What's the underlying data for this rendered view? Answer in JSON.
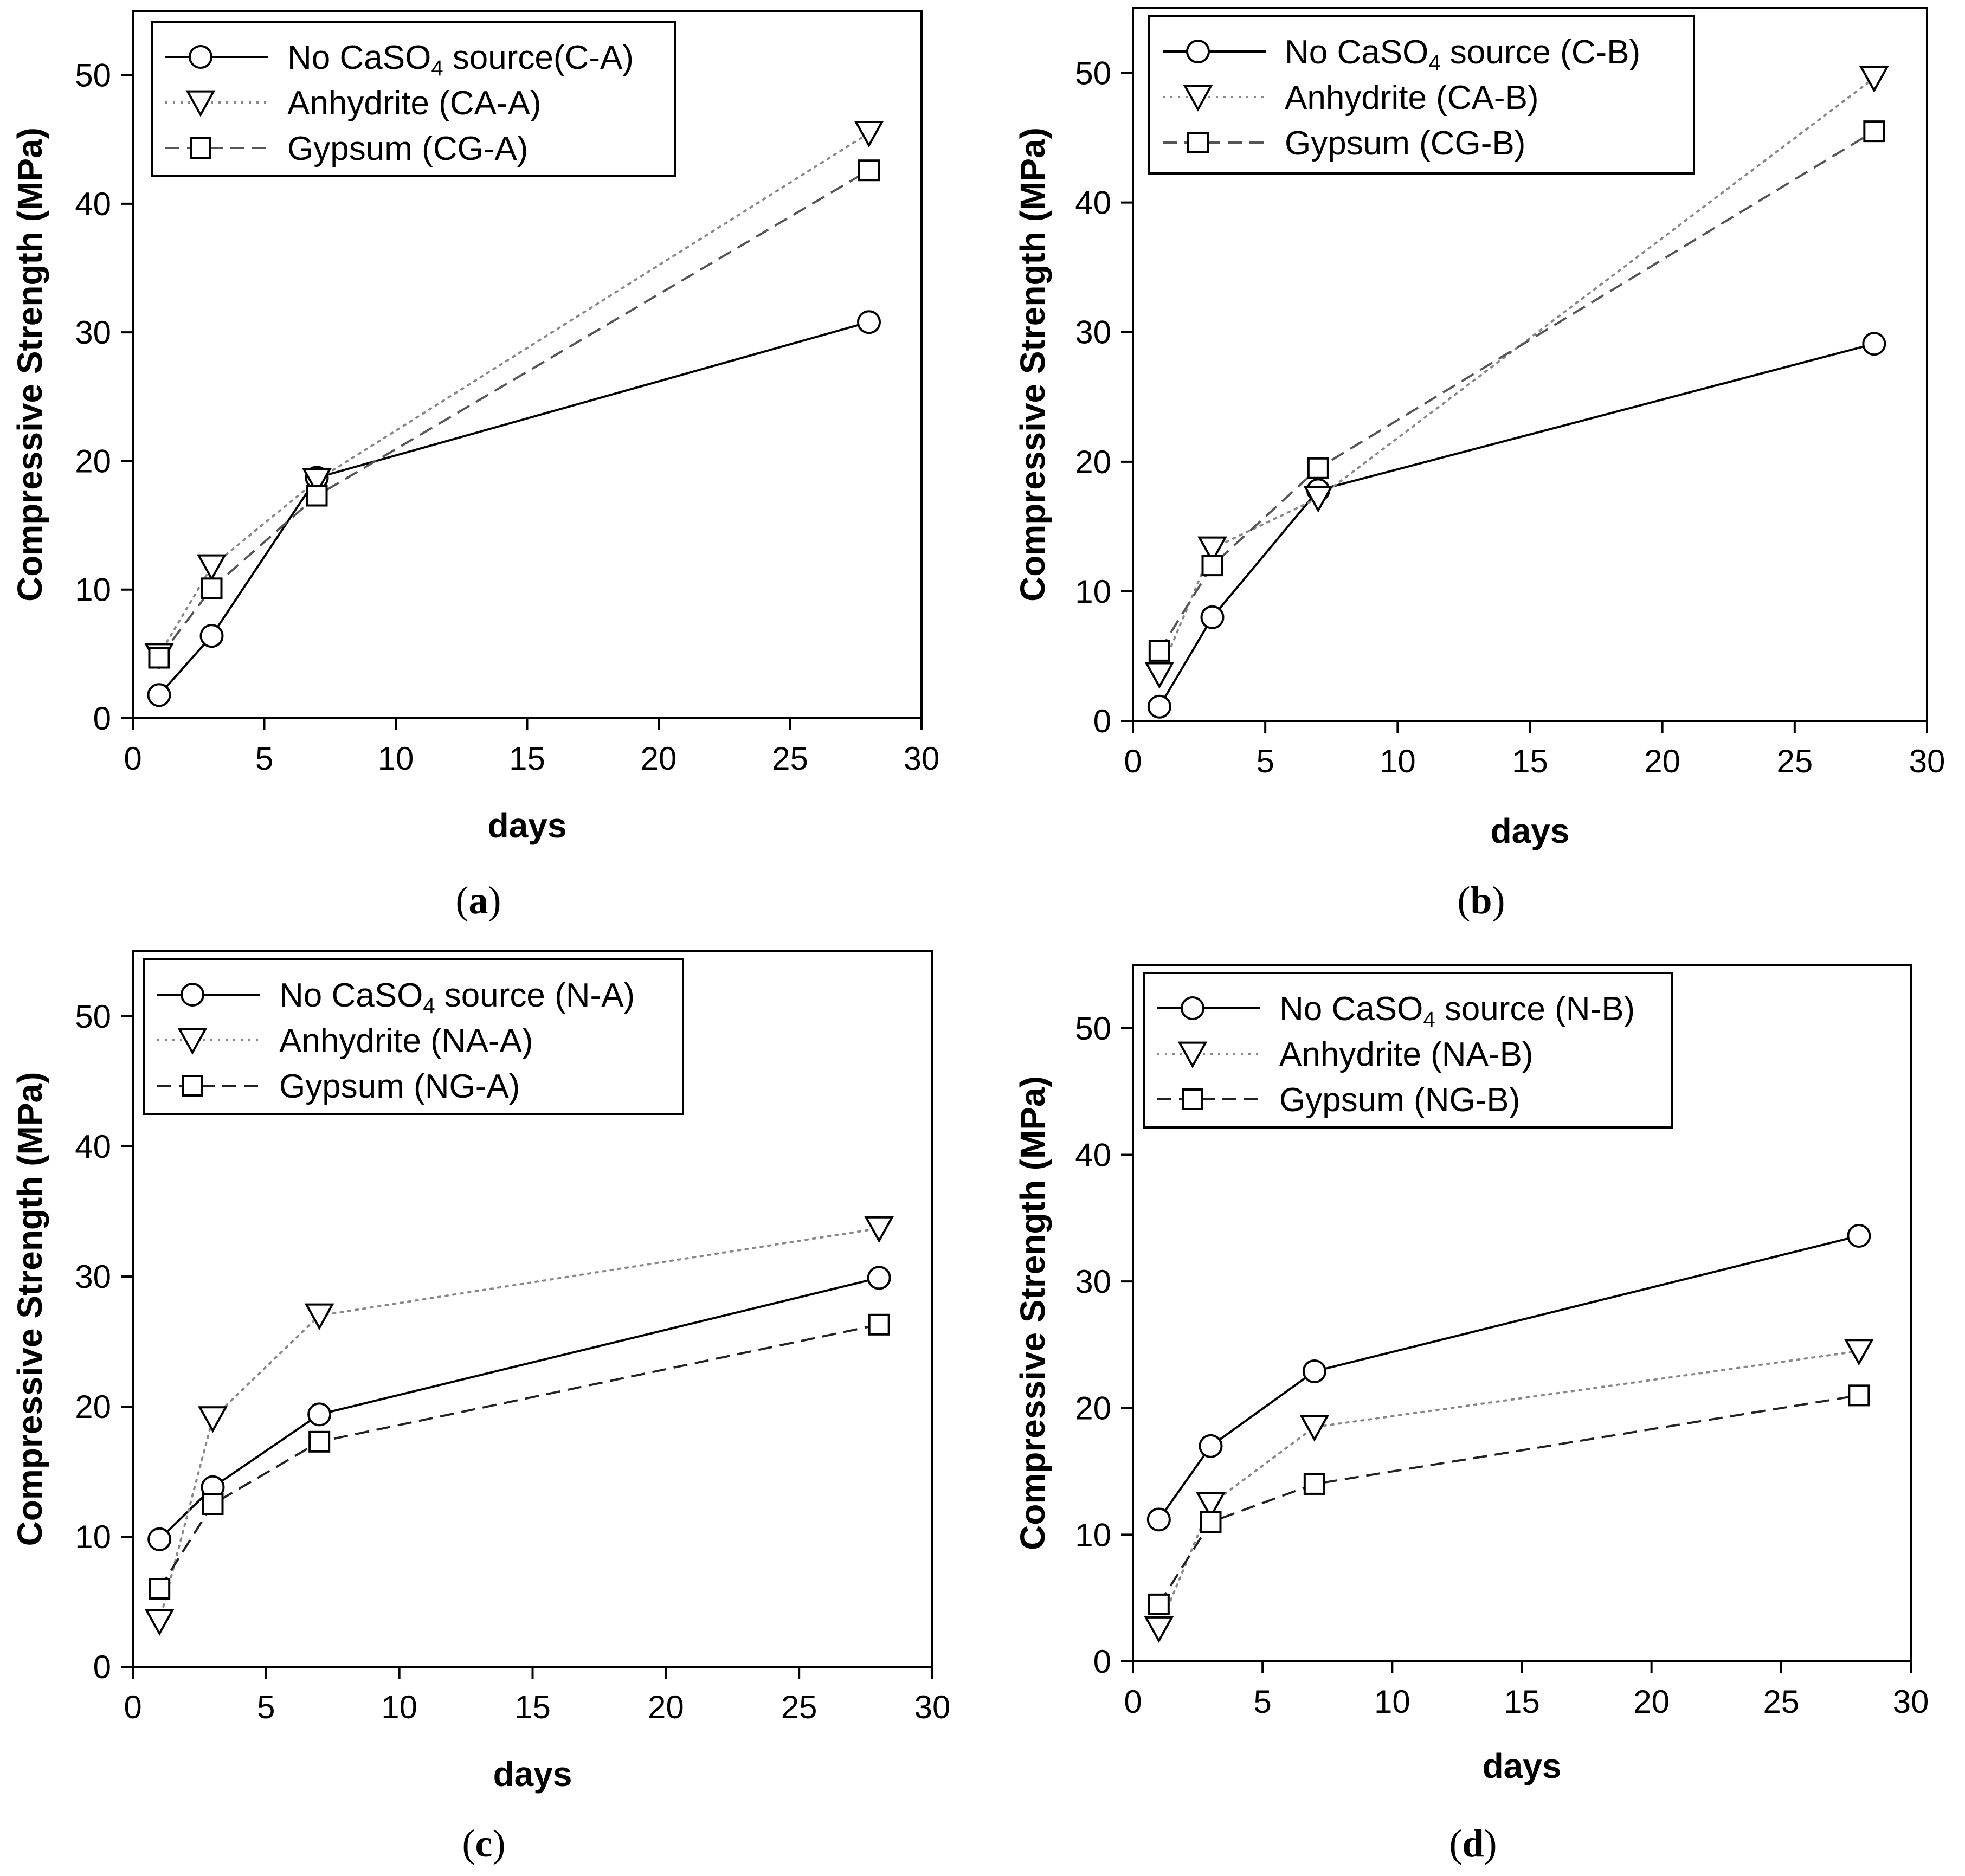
{
  "chart_data": [
    {
      "type": "line",
      "panel_label": "a",
      "xlabel": "days",
      "ylabel": "Compressive Strength (MPa)",
      "xlim": [
        0,
        30
      ],
      "ylim": [
        0,
        55
      ],
      "xticks": [
        0,
        5,
        10,
        15,
        20,
        25,
        30
      ],
      "yticks": [
        0,
        10,
        20,
        30,
        40,
        50
      ],
      "grid": false,
      "legend_position": "top-left",
      "x": [
        1,
        3,
        7,
        28
      ],
      "series": [
        {
          "name_pre": "No CaSO",
          "name_sub": "4",
          "name_post": " source(C-A)",
          "marker": "circle",
          "style": "solid",
          "color": "#000000",
          "values": [
            1.8,
            6.4,
            18.7,
            30.8
          ]
        },
        {
          "name_pre": "Anhydrite (CA-A)",
          "name_sub": "",
          "name_post": "",
          "marker": "triangle-down",
          "style": "dotted",
          "color": "#888888",
          "values": [
            4.9,
            11.8,
            18.5,
            45.5
          ]
        },
        {
          "name_pre": "Gypsum (CG-A)",
          "name_sub": "",
          "name_post": "",
          "marker": "square",
          "style": "dashed",
          "color": "#555555",
          "values": [
            4.7,
            10.1,
            17.3,
            42.6
          ]
        }
      ]
    },
    {
      "type": "line",
      "panel_label": "b",
      "xlabel": "days",
      "ylabel": "Compressive Strength (MPa)",
      "xlim": [
        0,
        30
      ],
      "ylim": [
        0,
        55
      ],
      "xticks": [
        0,
        5,
        10,
        15,
        20,
        25,
        30
      ],
      "yticks": [
        0,
        10,
        20,
        30,
        40,
        50
      ],
      "grid": false,
      "legend_position": "top-left",
      "x": [
        1,
        3,
        7,
        28
      ],
      "series": [
        {
          "name_pre": "No CaSO",
          "name_sub": "4",
          "name_post": " source (C-B)",
          "marker": "circle",
          "style": "solid",
          "color": "#000000",
          "values": [
            1.1,
            8.0,
            17.8,
            29.1
          ]
        },
        {
          "name_pre": "Anhydrite (CA-B)",
          "name_sub": "",
          "name_post": "",
          "marker": "triangle-down",
          "style": "dotted",
          "color": "#888888",
          "values": [
            3.6,
            13.3,
            17.2,
            49.6
          ]
        },
        {
          "name_pre": "Gypsum (CG-B)",
          "name_sub": "",
          "name_post": "",
          "marker": "square",
          "style": "dashed",
          "color": "#555555",
          "values": [
            5.4,
            12.0,
            19.5,
            45.5
          ]
        }
      ]
    },
    {
      "type": "line",
      "panel_label": "c",
      "xlabel": "days",
      "ylabel": "Compressive Strength (MPa)",
      "xlim": [
        0,
        30
      ],
      "ylim": [
        0,
        55
      ],
      "xticks": [
        0,
        5,
        10,
        15,
        20,
        25,
        30
      ],
      "yticks": [
        0,
        10,
        20,
        30,
        40,
        50
      ],
      "grid": false,
      "legend_position": "top-left",
      "x": [
        1,
        3,
        7,
        28
      ],
      "series": [
        {
          "name_pre": "No CaSO",
          "name_sub": "4",
          "name_post": " source (N-A)",
          "marker": "circle",
          "style": "solid",
          "color": "#000000",
          "values": [
            9.8,
            13.8,
            19.4,
            29.9
          ]
        },
        {
          "name_pre": "Anhydrite (NA-A)",
          "name_sub": "",
          "name_post": "",
          "marker": "triangle-down",
          "style": "dotted",
          "color": "#888888",
          "values": [
            3.5,
            19.1,
            27.0,
            33.7
          ]
        },
        {
          "name_pre": "Gypsum (NG-A)",
          "name_sub": "",
          "name_post": "",
          "marker": "square",
          "style": "dashed",
          "color": "#222222",
          "values": [
            6.0,
            12.5,
            17.3,
            26.3
          ]
        }
      ]
    },
    {
      "type": "line",
      "panel_label": "d",
      "xlabel": "days",
      "ylabel": "Compressive Strength (MPa)",
      "xlim": [
        0,
        30
      ],
      "ylim": [
        0,
        55
      ],
      "xticks": [
        0,
        5,
        10,
        15,
        20,
        25,
        30
      ],
      "yticks": [
        0,
        10,
        20,
        30,
        40,
        50
      ],
      "grid": false,
      "legend_position": "top-left",
      "x": [
        1,
        3,
        7,
        28
      ],
      "series": [
        {
          "name_pre": "No CaSO",
          "name_sub": "4",
          "name_post": " source (N-B)",
          "marker": "circle",
          "style": "solid",
          "color": "#000000",
          "values": [
            11.2,
            17.0,
            22.9,
            33.6
          ]
        },
        {
          "name_pre": "Anhydrite (NA-B)",
          "name_sub": "",
          "name_post": "",
          "marker": "triangle-down",
          "style": "dotted",
          "color": "#888888",
          "values": [
            2.6,
            12.4,
            18.5,
            24.5
          ]
        },
        {
          "name_pre": "Gypsum (NG-B)",
          "name_sub": "",
          "name_post": "",
          "marker": "square",
          "style": "dashed",
          "color": "#222222",
          "values": [
            4.5,
            11.0,
            14.0,
            21.0
          ]
        }
      ]
    }
  ]
}
